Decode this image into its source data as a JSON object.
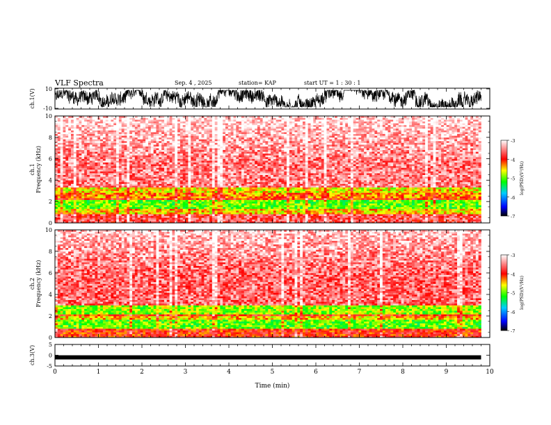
{
  "header": {
    "title": "VLF Spectra",
    "date": "Sep. 4 , 2025",
    "station": "station= KAP",
    "start": "start UT =  1 : 30 : 1"
  },
  "chart_data": [
    {
      "type": "line",
      "id": "ch1-waveform",
      "ylabel": "ch.1(V)",
      "ylim": [
        -10,
        10
      ],
      "yticks": [
        "10",
        "-10"
      ],
      "xlim": [
        0,
        10
      ],
      "description_series": "dense noisy waveform, amplitude roughly -8 to 8 V, data until ~9.8 min"
    },
    {
      "type": "heatmap",
      "id": "ch1-spectrogram",
      "ylabel_top": "ch.1",
      "ylabel": "Frequency (kHz)",
      "ylim": [
        0,
        10
      ],
      "yticks": [
        "0",
        "2",
        "4",
        "6",
        "8",
        "10"
      ],
      "xlim": [
        0,
        9.8
      ],
      "bands": [
        {
          "f_low": 3.4,
          "f_high": 10,
          "level": -3.5
        },
        {
          "f_low": 2.8,
          "f_high": 3.4,
          "level": -4.6
        },
        {
          "f_low": 2.4,
          "f_high": 2.8,
          "level": -4.3
        },
        {
          "f_low": 1.3,
          "f_high": 2.2,
          "level": -5.0
        },
        {
          "f_low": 0.9,
          "f_high": 1.3,
          "level": -4.5
        },
        {
          "f_low": 0,
          "f_high": 0.9,
          "level": -3.7
        }
      ]
    },
    {
      "type": "heatmap",
      "id": "ch2-spectrogram",
      "ylabel_top": "ch.2",
      "ylabel": "Frequency (kHz)",
      "ylim": [
        0,
        10
      ],
      "yticks": [
        "0",
        "2",
        "4",
        "6",
        "8",
        "10"
      ],
      "xlim": [
        0,
        9.8
      ],
      "bands": [
        {
          "f_low": 3.0,
          "f_high": 10,
          "level": -3.6
        },
        {
          "f_low": 2.2,
          "f_high": 3.0,
          "level": -4.9
        },
        {
          "f_low": 1.6,
          "f_high": 2.0,
          "level": -4.5
        },
        {
          "f_low": 0.9,
          "f_high": 1.6,
          "level": -5.0
        },
        {
          "f_low": 0,
          "f_high": 0.9,
          "level": -4.0
        }
      ]
    },
    {
      "type": "line",
      "id": "ch3-waveform",
      "ylabel": "ch.3(V)",
      "ylim": [
        -5,
        5
      ],
      "yticks": [
        "5",
        "0",
        "-5"
      ],
      "xlim": [
        0,
        10
      ],
      "description_series": "near-constant thick band around -1 V"
    }
  ],
  "xaxis": {
    "label": "Time (min)",
    "ticks": [
      "0",
      "1",
      "2",
      "3",
      "4",
      "5",
      "6",
      "7",
      "8",
      "9",
      "10"
    ]
  },
  "colorbar": {
    "label": "log(PSD)(V²/Hz)",
    "ticks": [
      "-3",
      "-4",
      "-5",
      "-6",
      "-7"
    ],
    "range": [
      -7,
      -3
    ],
    "colors": [
      "#000000",
      "#0000ff",
      "#00ccff",
      "#00ff00",
      "#ffff00",
      "#ff0000",
      "#ffffff"
    ]
  }
}
